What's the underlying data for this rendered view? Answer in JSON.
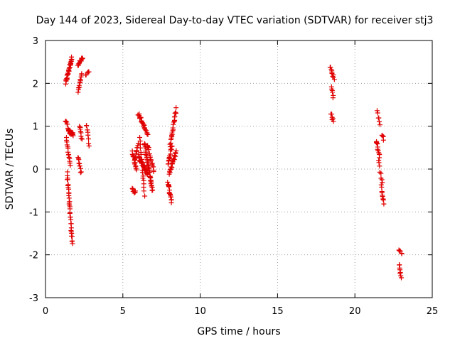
{
  "chart_data": {
    "type": "scatter",
    "title": "Day 144 of 2023, Sidereal Day-to-day VTEC variation (SDTVAR) for receiver stj3",
    "xlabel": "GPS time / hours",
    "ylabel": "SDTVAR / TECUs",
    "xlim": [
      0,
      25
    ],
    "ylim": [
      -3,
      3
    ],
    "xticks": [
      0,
      5,
      10,
      15,
      20,
      25
    ],
    "yticks": [
      -3,
      -2,
      -1,
      0,
      1,
      2,
      3
    ],
    "grid": true,
    "marker": "+",
    "color": "#e00000",
    "series": [
      {
        "name": "SDTVAR",
        "segments": [
          {
            "x": [
              1.3,
              1.7
            ],
            "y": [
              2.0,
              2.6
            ],
            "n": 30
          },
          {
            "x": [
              2.1,
              2.4
            ],
            "y": [
              2.45,
              2.58
            ],
            "n": 14
          },
          {
            "x": [
              2.1,
              2.35
            ],
            "y": [
              1.8,
              2.2
            ],
            "n": 12
          },
          {
            "x": [
              2.6,
              2.8
            ],
            "y": [
              2.2,
              2.24
            ],
            "n": 5
          },
          {
            "x": [
              1.3,
              1.55
            ],
            "y": [
              1.15,
              0.85
            ],
            "n": 10
          },
          {
            "x": [
              1.5,
              1.8
            ],
            "y": [
              0.9,
              0.8
            ],
            "n": 18
          },
          {
            "x": [
              1.35,
              1.6
            ],
            "y": [
              0.7,
              0.1
            ],
            "n": 14
          },
          {
            "x": [
              1.4,
              1.6
            ],
            "y": [
              -0.1,
              -1.05
            ],
            "n": 22
          },
          {
            "x": [
              1.6,
              1.75
            ],
            "y": [
              -1.1,
              -1.75
            ],
            "n": 14
          },
          {
            "x": [
              2.1,
              2.3
            ],
            "y": [
              0.3,
              -0.1
            ],
            "n": 10
          },
          {
            "x": [
              2.2,
              2.35
            ],
            "y": [
              1.0,
              0.7
            ],
            "n": 8
          },
          {
            "x": [
              2.65,
              2.8
            ],
            "y": [
              1.05,
              0.55
            ],
            "n": 8
          },
          {
            "x": [
              5.6,
              5.8
            ],
            "y": [
              -0.45,
              -0.55
            ],
            "n": 8
          },
          {
            "x": [
              5.6,
              5.9
            ],
            "y": [
              0.4,
              0.0
            ],
            "n": 12
          },
          {
            "x": [
              5.75,
              6.0
            ],
            "y": [
              0.15,
              0.6
            ],
            "n": 12
          },
          {
            "x": [
              6.0,
              6.6
            ],
            "y": [
              1.3,
              0.8
            ],
            "n": 22
          },
          {
            "x": [
              6.0,
              6.6
            ],
            "y": [
              0.3,
              -0.1
            ],
            "n": 34
          },
          {
            "x": [
              6.1,
              6.4
            ],
            "y": [
              0.7,
              -0.6
            ],
            "n": 18
          },
          {
            "x": [
              6.4,
              6.9
            ],
            "y": [
              0.6,
              -0.5
            ],
            "n": 40
          },
          {
            "x": [
              6.6,
              7.0
            ],
            "y": [
              0.55,
              -0.05
            ],
            "n": 16
          },
          {
            "x": [
              7.9,
              8.15
            ],
            "y": [
              -0.3,
              -0.75
            ],
            "n": 16
          },
          {
            "x": [
              7.9,
              8.2
            ],
            "y": [
              0.1,
              0.55
            ],
            "n": 16
          },
          {
            "x": [
              8.0,
              8.45
            ],
            "y": [
              -0.1,
              0.4
            ],
            "n": 22
          },
          {
            "x": [
              8.05,
              8.45
            ],
            "y": [
              0.55,
              1.4
            ],
            "n": 22
          },
          {
            "x": [
              18.4,
              18.65
            ],
            "y": [
              2.4,
              2.1
            ],
            "n": 10
          },
          {
            "x": [
              18.5,
              18.6
            ],
            "y": [
              1.9,
              1.7
            ],
            "n": 6
          },
          {
            "x": [
              18.45,
              18.6
            ],
            "y": [
              1.3,
              1.1
            ],
            "n": 6
          },
          {
            "x": [
              21.45,
              21.6
            ],
            "y": [
              1.35,
              1.05
            ],
            "n": 6
          },
          {
            "x": [
              21.4,
              21.6
            ],
            "y": [
              0.65,
              0.3
            ],
            "n": 12
          },
          {
            "x": [
              21.55,
              21.75
            ],
            "y": [
              0.2,
              -0.35
            ],
            "n": 8
          },
          {
            "x": [
              21.7,
              21.85
            ],
            "y": [
              -0.4,
              -0.8
            ],
            "n": 10
          },
          {
            "x": [
              21.75,
              21.85
            ],
            "y": [
              0.8,
              0.7
            ],
            "n": 4
          },
          {
            "x": [
              22.85,
              23.05
            ],
            "y": [
              -1.9,
              -2.0
            ],
            "n": 5
          },
          {
            "x": [
              22.85,
              23.0
            ],
            "y": [
              -2.2,
              -2.55
            ],
            "n": 8
          }
        ]
      }
    ]
  }
}
